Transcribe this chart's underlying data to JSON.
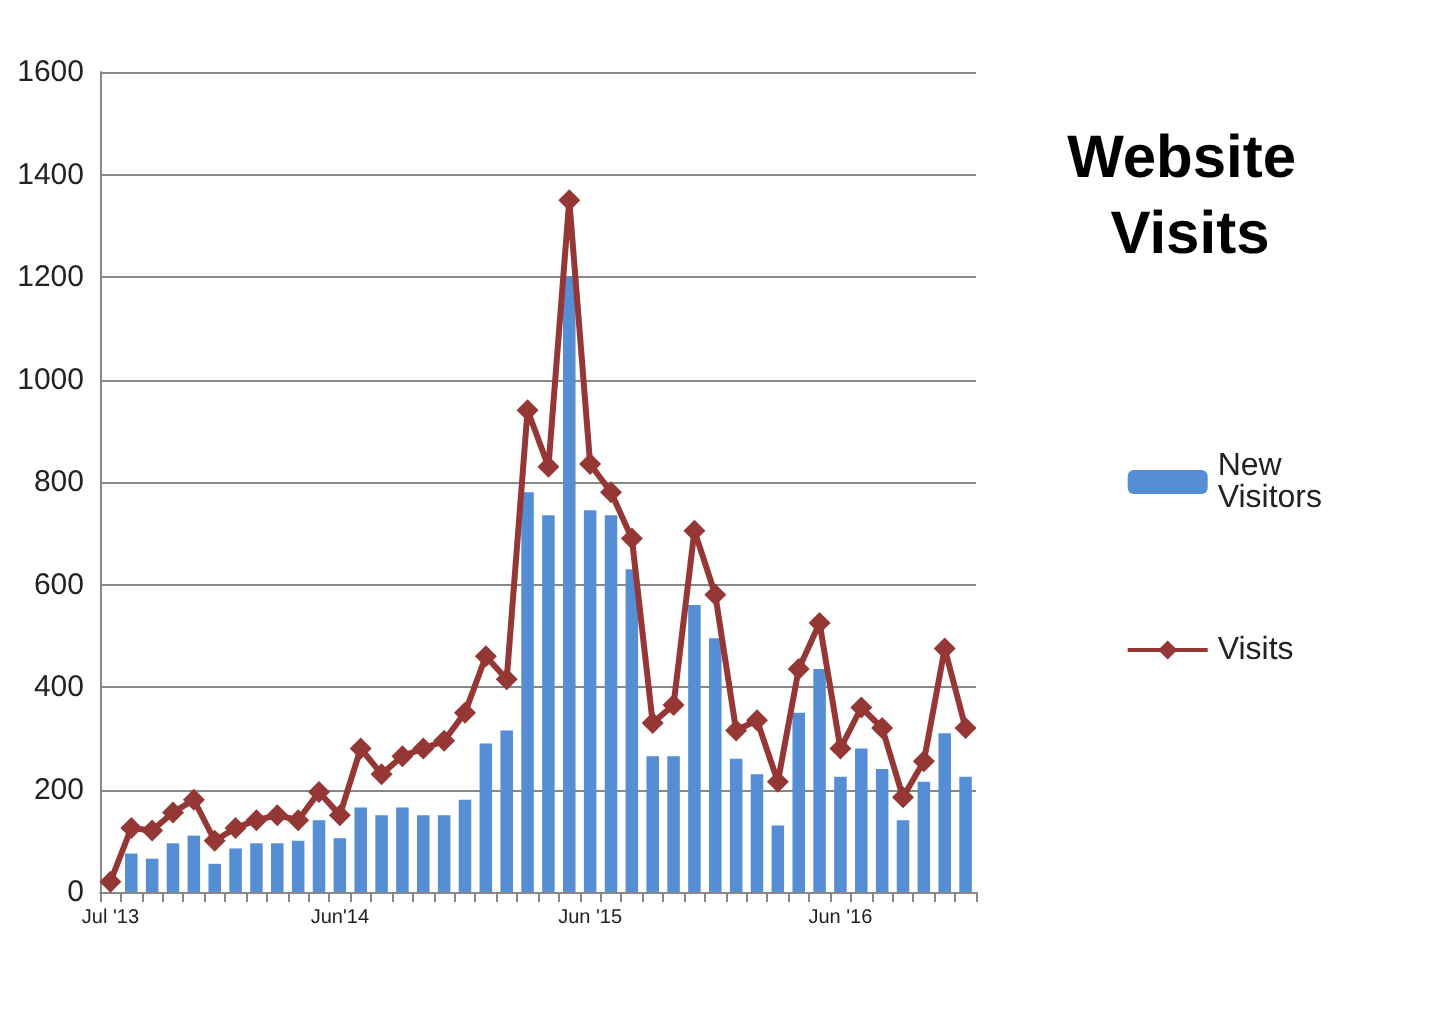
{
  "chart_data": {
    "type": "bar",
    "title": "Website Visits",
    "categories": [
      "Jul '13",
      null,
      null,
      null,
      null,
      null,
      null,
      null,
      null,
      null,
      null,
      "Jun'14",
      null,
      null,
      null,
      null,
      null,
      null,
      null,
      null,
      null,
      null,
      null,
      "Jun '15",
      null,
      null,
      null,
      null,
      null,
      null,
      null,
      null,
      null,
      null,
      null,
      "Jun '16",
      null,
      null,
      null,
      null,
      null,
      null
    ],
    "series": [
      {
        "name": "New Visitors",
        "color": "#558ed5",
        "values": [
          null,
          75,
          65,
          95,
          110,
          55,
          85,
          95,
          95,
          100,
          140,
          105,
          165,
          150,
          165,
          150,
          150,
          180,
          290,
          315,
          780,
          735,
          1200,
          745,
          735,
          630,
          265,
          265,
          560,
          495,
          260,
          230,
          130,
          350,
          435,
          225,
          280,
          240,
          140,
          215,
          310,
          225
        ]
      },
      {
        "name": "Visits",
        "type": "line",
        "color": "#953735",
        "marker": "diamond",
        "values": [
          20,
          125,
          120,
          155,
          180,
          100,
          125,
          140,
          150,
          140,
          195,
          150,
          280,
          230,
          265,
          280,
          295,
          350,
          460,
          415,
          940,
          830,
          1350,
          835,
          780,
          690,
          330,
          365,
          705,
          580,
          315,
          335,
          215,
          435,
          525,
          280,
          360,
          320,
          185,
          255,
          475,
          320
        ]
      }
    ],
    "ylim": [
      0,
      1600
    ],
    "yticks": [
      0,
      200,
      400,
      600,
      800,
      1000,
      1200,
      1400,
      1600
    ],
    "grid": "y",
    "legend": "right"
  }
}
